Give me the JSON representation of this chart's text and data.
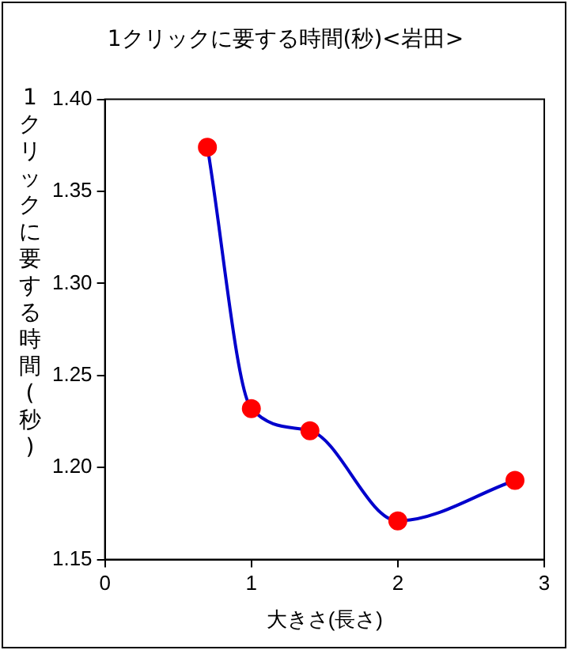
{
  "chart_data": {
    "type": "line",
    "title": "1クリックに要する時間(秒)<岩田>",
    "xlabel": "大きさ(長さ)",
    "ylabel": "1クリックに要する時間(秒)",
    "x": [
      0.7,
      1.0,
      1.4,
      2.0,
      2.8
    ],
    "series": [
      {
        "color": "#0000cc",
        "colors": [
          "#ff0000",
          "#ff0000",
          "#ff0000",
          "#ff0000",
          "#ff0000"
        ],
        "values": [
          1.374,
          1.232,
          1.22,
          1.171,
          1.193
        ]
      }
    ],
    "marker": "circle",
    "xlim": [
      0,
      3
    ],
    "xticks": [
      0,
      1,
      2,
      3
    ],
    "ylim": [
      1.15,
      1.4
    ],
    "yticks": [
      {
        "value": 1.15,
        "label": "1.15"
      },
      {
        "value": 1.2,
        "label": "1.20"
      },
      {
        "value": 1.25,
        "label": "1.25"
      },
      {
        "value": 1.3,
        "label": "1.30"
      },
      {
        "value": 1.35,
        "label": "1.35"
      },
      {
        "value": 1.4,
        "label": "1.40"
      }
    ],
    "grid": false,
    "legend": false
  }
}
